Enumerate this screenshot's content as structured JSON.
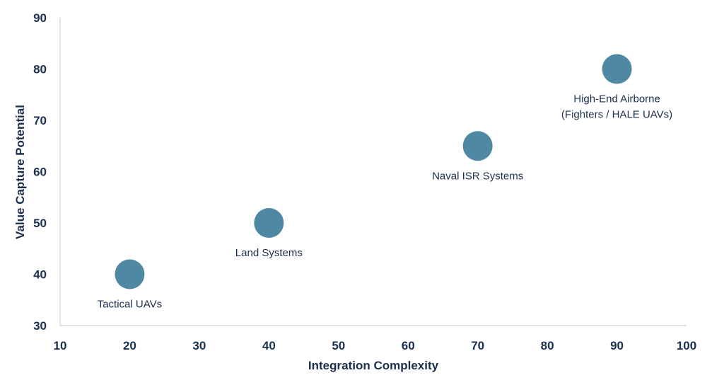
{
  "chart_data": {
    "type": "scatter",
    "title": "",
    "xlabel": "Integration Complexity",
    "ylabel": "Value Capture Potential",
    "xlim": [
      10,
      100
    ],
    "ylim": [
      30,
      90
    ],
    "xticks": [
      10,
      20,
      30,
      40,
      50,
      60,
      70,
      80,
      90,
      100
    ],
    "yticks": [
      30,
      40,
      50,
      60,
      70,
      80,
      90
    ],
    "grid": false,
    "legend": null,
    "marker_color": "#4e88a3",
    "points": [
      {
        "label": "Tactical UAVs",
        "x": 20,
        "y": 40
      },
      {
        "label": "Land Systems",
        "x": 40,
        "y": 50
      },
      {
        "label": "Naval ISR Systems",
        "x": 70,
        "y": 65
      },
      {
        "label": "High-End Airborne\n(Fighters / HALE UAVs)",
        "label_lines": [
          "High-End Airborne",
          "(Fighters / HALE UAVs)"
        ],
        "x": 90,
        "y": 80
      }
    ]
  }
}
